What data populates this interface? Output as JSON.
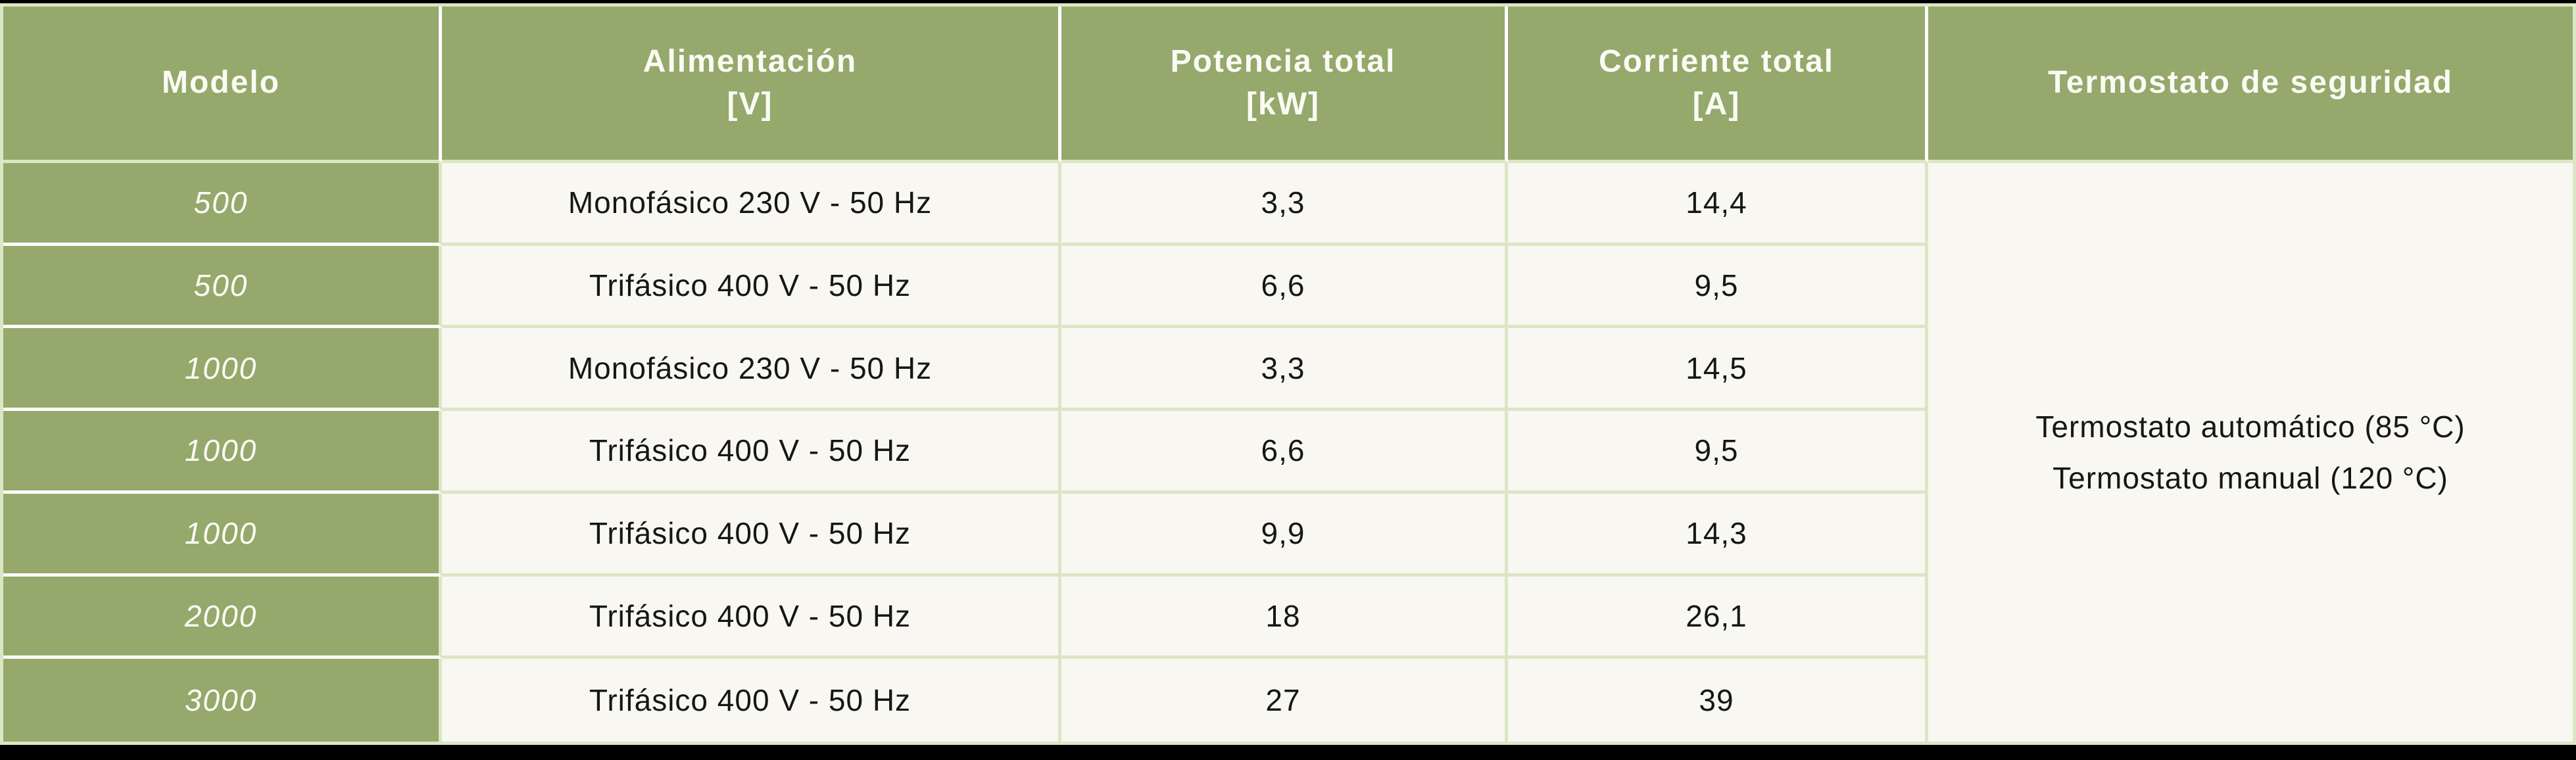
{
  "colors": {
    "header_green": "#94A96B",
    "border_light_green": "#DBE7C3",
    "cell_background": "#F8F7F2",
    "separator_white": "#FFFFFF",
    "frame_black": "#000000",
    "header_text": "#FBFBF5",
    "body_text": "#161616"
  },
  "table": {
    "headers": [
      {
        "label": "Modelo",
        "unit": ""
      },
      {
        "label": "Alimentación",
        "unit": "[V]"
      },
      {
        "label": "Potencia total",
        "unit": "[kW]"
      },
      {
        "label": "Corriente total",
        "unit": "[A]"
      },
      {
        "label": "Termostato de seguridad",
        "unit": ""
      }
    ],
    "rows": [
      {
        "modelo": "500",
        "alimentacion": "Monofásico 230 V - 50 Hz",
        "potencia": "3,3",
        "corriente": "14,4"
      },
      {
        "modelo": "500",
        "alimentacion": "Trifásico 400 V - 50 Hz",
        "potencia": "6,6",
        "corriente": "9,5"
      },
      {
        "modelo": "1000",
        "alimentacion": "Monofásico 230 V - 50 Hz",
        "potencia": "3,3",
        "corriente": "14,5"
      },
      {
        "modelo": "1000",
        "alimentacion": "Trifásico 400 V - 50 Hz",
        "potencia": "6,6",
        "corriente": "9,5"
      },
      {
        "modelo": "1000",
        "alimentacion": "Trifásico 400 V - 50 Hz",
        "potencia": "9,9",
        "corriente": "14,3"
      },
      {
        "modelo": "2000",
        "alimentacion": "Trifásico 400 V - 50 Hz",
        "potencia": "18",
        "corriente": "26,1"
      },
      {
        "modelo": "3000",
        "alimentacion": "Trifásico 400 V - 50 Hz",
        "potencia": "27",
        "corriente": "39"
      }
    ],
    "termostato": {
      "line1": "Termostato automático (85 °C)",
      "line2": "Termostato manual (120 °C)"
    }
  }
}
